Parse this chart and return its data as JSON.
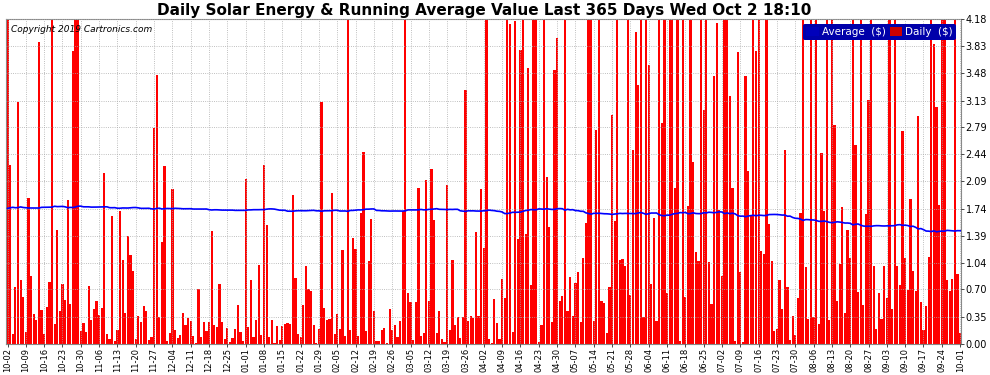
{
  "title": "Daily Solar Energy & Running Average Value Last 365 Days Wed Oct 2 18:10",
  "copyright": "Copyright 2019 Cartronics.com",
  "ylabel_right_ticks": [
    0.0,
    0.35,
    0.7,
    1.04,
    1.39,
    1.74,
    2.09,
    2.44,
    2.79,
    3.13,
    3.48,
    3.83,
    4.18
  ],
  "ymax": 4.18,
  "ymin": 0.0,
  "bar_color": "#FF0000",
  "avg_color": "#0000FF",
  "bg_color": "#FFFFFF",
  "grid_color": "#CCCCCC",
  "title_fontsize": 11,
  "legend_avg_label": "Average  ($)",
  "legend_daily_label": "Daily  ($)",
  "legend_avg_bg": "#0000CC",
  "legend_daily_bg": "#CC0000"
}
